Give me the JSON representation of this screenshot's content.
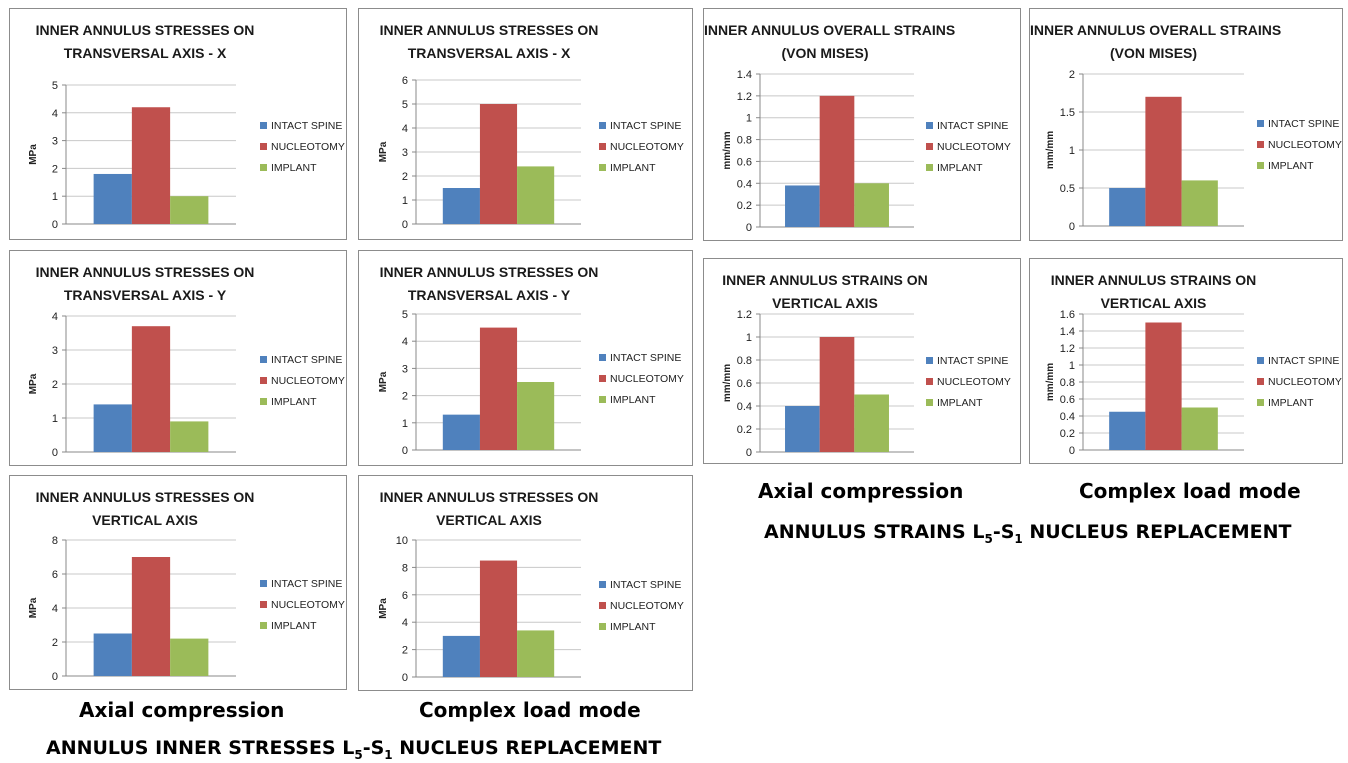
{
  "series_names": [
    "INTACT SPINE",
    "NUCLEOTOMY",
    "IMPLANT"
  ],
  "colors": [
    "#4f81bd",
    "#c0504d",
    "#9bbb59"
  ],
  "captions": {
    "left_axial": "Axial compression",
    "left_complex": "Complex load mode",
    "right_axial": "Axial compression",
    "right_complex": "Complex load mode"
  },
  "headings": {
    "stresses": {
      "pre": "ANNULUS INNER STRESSES L",
      "sub1": "5",
      "mid": "-S",
      "sub2": "1",
      "post": " NUCLEUS REPLACEMENT"
    },
    "strains": {
      "pre": "ANNULUS STRAINS L",
      "sub1": "5",
      "mid": "-S",
      "sub2": "1",
      "post": " NUCLEUS REPLACEMENT"
    }
  },
  "chart_data": [
    {
      "type": "bar",
      "title_lines": [
        "INNER ANNULUS STRESSES ON",
        "TRANSVERSAL AXIS - X"
      ],
      "ylabel": "MPa",
      "ylim": [
        0,
        5
      ],
      "ticks": [
        "0",
        "1",
        "2",
        "3",
        "4",
        "5"
      ],
      "values": [
        1.8,
        4.2,
        1.0
      ]
    },
    {
      "type": "bar",
      "title_lines": [
        "INNER ANNULUS STRESSES ON",
        "TRANSVERSAL AXIS - X"
      ],
      "ylabel": "MPa",
      "ylim": [
        0,
        6
      ],
      "ticks": [
        "0",
        "1",
        "2",
        "3",
        "4",
        "5",
        "6"
      ],
      "values": [
        1.5,
        5.0,
        2.4
      ]
    },
    {
      "type": "bar",
      "title_lines": [
        "INNER ANNULUS OVERALL STRAINS",
        "(VON MISES)"
      ],
      "ylabel": "mm/mm",
      "ylim": [
        0,
        1.4
      ],
      "ticks": [
        "0",
        "0.2",
        "0.4",
        "0.6",
        "0.8",
        "1",
        "1.2",
        "1.4"
      ],
      "values": [
        0.38,
        1.2,
        0.4
      ]
    },
    {
      "type": "bar",
      "title_lines": [
        "INNER ANNULUS  OVERALL STRAINS",
        "(VON MISES)"
      ],
      "ylabel": "mm/mm",
      "ylim": [
        0,
        2
      ],
      "ticks": [
        "0",
        "0.5",
        "1",
        "1.5",
        "2"
      ],
      "values": [
        0.5,
        1.7,
        0.6
      ]
    },
    {
      "type": "bar",
      "title_lines": [
        "INNER ANNULUS STRESSES ON",
        "TRANSVERSAL AXIS - Y"
      ],
      "ylabel": "MPa",
      "ylim": [
        0,
        4
      ],
      "ticks": [
        "0",
        "1",
        "2",
        "3",
        "4"
      ],
      "values": [
        1.4,
        3.7,
        0.9
      ]
    },
    {
      "type": "bar",
      "title_lines": [
        "INNER ANNULUS STRESSES ON",
        "TRANSVERSAL AXIS - Y"
      ],
      "ylabel": "MPa",
      "ylim": [
        0,
        5
      ],
      "ticks": [
        "0",
        "1",
        "2",
        "3",
        "4",
        "5"
      ],
      "values": [
        1.3,
        4.5,
        2.5
      ]
    },
    {
      "type": "bar",
      "title_lines": [
        "INNER ANNULUS STRAINS ON",
        "VERTICAL AXIS"
      ],
      "ylabel": "mm/mm",
      "ylim": [
        0,
        1.2
      ],
      "ticks": [
        "0",
        "0.2",
        "0.4",
        "0.6",
        "0.8",
        "1",
        "1.2"
      ],
      "values": [
        0.4,
        1.0,
        0.5
      ]
    },
    {
      "type": "bar",
      "title_lines": [
        "INNER ANNULUS STRAINS ON",
        "VERTICAL AXIS"
      ],
      "ylabel": "mm/mm",
      "ylim": [
        0,
        1.6
      ],
      "ticks": [
        "0",
        "0.2",
        "0.4",
        "0.6",
        "0.8",
        "1",
        "1.2",
        "1.4",
        "1.6"
      ],
      "values": [
        0.45,
        1.5,
        0.5
      ]
    },
    {
      "type": "bar",
      "title_lines": [
        "INNER ANNULUS STRESSES ON",
        "VERTICAL AXIS"
      ],
      "ylabel": "MPa",
      "ylim": [
        0,
        8
      ],
      "ticks": [
        "0",
        "2",
        "4",
        "6",
        "8"
      ],
      "values": [
        2.5,
        7.0,
        2.2
      ]
    },
    {
      "type": "bar",
      "title_lines": [
        "INNER ANNULUS STRESSES ON",
        "VERTICAL AXIS"
      ],
      "ylabel": "MPa",
      "ylim": [
        0,
        10
      ],
      "ticks": [
        "0",
        "2",
        "4",
        "6",
        "8",
        "10"
      ],
      "values": [
        3.0,
        8.5,
        3.4
      ]
    }
  ]
}
